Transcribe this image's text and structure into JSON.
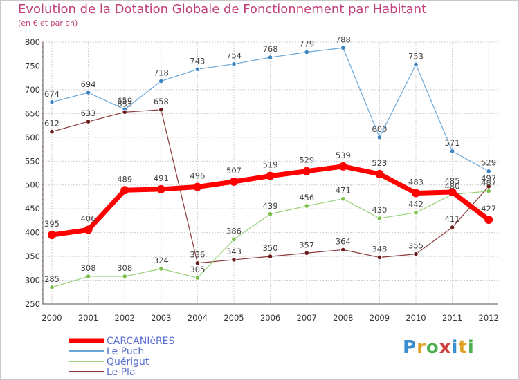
{
  "header": {
    "title": "Evolution de la Dotation Globale de Fonctionnement par Habitant",
    "subtitle": "(en € et par an)"
  },
  "logo": {
    "text": "Proxiti",
    "colors": [
      "#3a8fd0",
      "#e0a020",
      "#4caf50",
      "#d04040",
      "#3a8fd0",
      "#e0a020",
      "#4caf50"
    ]
  },
  "chart_data": {
    "type": "line",
    "title": "Evolution de la Dotation Globale de Fonctionnement par Habitant",
    "subtitle": "(en € et par an)",
    "x": [
      "2000",
      "2001",
      "2002",
      "2003",
      "2004",
      "2005",
      "2006",
      "2007",
      "2008",
      "2009",
      "2010",
      "2011",
      "2012"
    ],
    "ylim": [
      250,
      800
    ],
    "yticks": [
      250,
      300,
      350,
      400,
      450,
      500,
      550,
      600,
      650,
      700,
      750,
      800
    ],
    "grid": true,
    "legend_position": "bottom-left",
    "series": [
      {
        "name": "Le Puch",
        "color": "#6aa7d8",
        "marker": "#3b84c4",
        "width": 1.2,
        "values": [
          674,
          694,
          659,
          718,
          743,
          754,
          768,
          779,
          788,
          600,
          753,
          571,
          529
        ]
      },
      {
        "name": "Le Pla",
        "color": "#8b3a3a",
        "marker": "#6b1a1a",
        "width": 1.2,
        "values": [
          612,
          633,
          653,
          658,
          336,
          343,
          350,
          357,
          364,
          348,
          355,
          411,
          497
        ]
      },
      {
        "name": "Quérigut",
        "color": "#9ad27a",
        "marker": "#7ac04a",
        "width": 1.2,
        "values": [
          285,
          308,
          308,
          324,
          305,
          386,
          439,
          456,
          471,
          430,
          442,
          480,
          487
        ]
      },
      {
        "name": "CARCANIèRES",
        "color": "#ff0000",
        "marker": "#ff0000",
        "width": 7,
        "values": [
          395,
          406,
          489,
          491,
          496,
          507,
          519,
          529,
          539,
          523,
          483,
          485,
          427
        ]
      }
    ],
    "legend_order": [
      "CARCANIèRES",
      "Le Puch",
      "Quérigut",
      "Le Pla"
    ]
  }
}
